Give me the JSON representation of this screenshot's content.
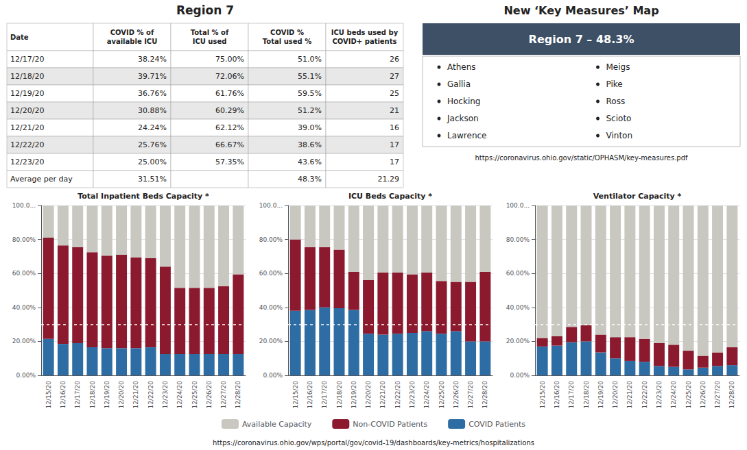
{
  "chart_data": [
    {
      "type": "table",
      "title": "Region 7",
      "xlabel": "Date",
      "categories": [
        "12/17/20",
        "12/18/20",
        "12/19/20",
        "12/20/20",
        "12/21/20",
        "12/22/20",
        "12/23/20",
        "Average per day"
      ],
      "series": [
        {
          "name": "COVID % of\navailable ICU",
          "values": [
            38.24,
            39.71,
            36.76,
            30.88,
            24.24,
            25.76,
            25.0,
            31.51
          ],
          "value_labels": [
            "38.24%",
            "39.71%",
            "36.76%",
            "30.88%",
            "24.24%",
            "25.76%",
            "25.00%",
            "31.51%"
          ]
        },
        {
          "name": "Total % of\nICU used",
          "values": [
            75.0,
            72.06,
            61.76,
            60.29,
            62.12,
            66.67,
            57.35,
            null
          ],
          "value_labels": [
            "75.00%",
            "72.06%",
            "61.76%",
            "60.29%",
            "62.12%",
            "66.67%",
            "57.35%",
            null
          ]
        },
        {
          "name": "COVID %\nTotal used %",
          "values": [
            51.0,
            55.1,
            59.5,
            51.2,
            39.0,
            38.6,
            43.6,
            48.3
          ],
          "value_labels": [
            "51.0%",
            "55.1%",
            "59.5%",
            "51.2%",
            "39.0%",
            "38.6%",
            "43.6%",
            "48.3%"
          ]
        },
        {
          "name": "ICU beds used by\nCOVID+ patients",
          "values": [
            26,
            27,
            25,
            21,
            16,
            17,
            17,
            21.29
          ]
        }
      ]
    },
    {
      "type": "text_panel",
      "title": "New ‘Key Measures’ Map",
      "subtitle": "Region 7 – 48.3%",
      "color": "#3d5066",
      "items_left": [
        "Athens",
        "Gallia",
        "Hocking",
        "Jackson",
        "Lawrence"
      ],
      "items_right": [
        "Meigs",
        "Pike",
        "Ross",
        "Scioto",
        "Vinton"
      ],
      "annotations": [
        "https://coronavirus.ohio.gov/static/OPHASM/key-measures.pdf"
      ]
    },
    {
      "type": "bar",
      "title": "Total Inpatient Beds Capacity *",
      "stacked": true,
      "grid": true,
      "legend": "bottom",
      "categories": [
        "12/15/20",
        "12/16/20",
        "12/17/20",
        "12/18/20",
        "12/19/20",
        "12/20/20",
        "12/21/20",
        "12/22/20",
        "12/23/20",
        "12/24/20",
        "12/25/20",
        "12/26/20",
        "12/27/20",
        "12/28/20"
      ],
      "series": [
        {
          "name": "COVID Patients",
          "color": "#2e6da4",
          "values": [
            21.5,
            18.5,
            19.0,
            16.5,
            16.0,
            16.0,
            16.0,
            16.5,
            12.5,
            12.5,
            12.5,
            12.5,
            12.5,
            12.5
          ]
        },
        {
          "name": "Non-COVID Patients",
          "color": "#8b1a2e",
          "values": [
            59.5,
            58.0,
            56.5,
            56.0,
            54.5,
            55.0,
            53.5,
            52.5,
            51.5,
            39.0,
            39.0,
            39.0,
            40.0,
            47.0
          ]
        },
        {
          "name": "Available Capacity",
          "color": "#c8c8c0",
          "values": [
            19.0,
            23.5,
            24.5,
            27.5,
            29.5,
            29.0,
            30.5,
            31.0,
            36.0,
            48.5,
            48.5,
            48.5,
            47.5,
            40.5
          ]
        }
      ],
      "reference_line": 30.0,
      "ylim": [
        0,
        100
      ],
      "yticks": [
        {
          "value": 0,
          "label": "0.00%"
        },
        {
          "value": 20,
          "label": "20.00%"
        },
        {
          "value": 40,
          "label": "40.00%"
        },
        {
          "value": 60,
          "label": "60.00%"
        },
        {
          "value": 80,
          "label": "80.00%"
        },
        {
          "value": 100,
          "label": "100.0..."
        }
      ]
    },
    {
      "type": "bar",
      "title": "ICU Beds Capacity *",
      "stacked": true,
      "grid": true,
      "legend": "bottom",
      "categories": [
        "12/15/20",
        "12/16/20",
        "12/17/20",
        "12/18/20",
        "12/19/20",
        "12/20/20",
        "12/21/20",
        "12/22/20",
        "12/23/20",
        "12/24/20",
        "12/25/20",
        "12/26/20",
        "12/27/20",
        "12/28/20"
      ],
      "series": [
        {
          "name": "COVID Patients",
          "color": "#2e6da4",
          "values": [
            38.0,
            38.5,
            40.0,
            39.5,
            38.5,
            24.5,
            24.0,
            24.5,
            25.0,
            26.0,
            24.5,
            26.0,
            20.0,
            20.0
          ]
        },
        {
          "name": "Non-COVID Patients",
          "color": "#8b1a2e",
          "values": [
            42.0,
            37.0,
            35.5,
            34.5,
            22.5,
            31.5,
            36.5,
            36.0,
            34.5,
            34.5,
            31.0,
            29.0,
            35.0,
            41.0
          ]
        },
        {
          "name": "Available Capacity",
          "color": "#c8c8c0",
          "values": [
            20.0,
            24.5,
            24.5,
            26.0,
            39.0,
            44.0,
            39.5,
            39.5,
            40.5,
            39.5,
            44.5,
            45.0,
            45.0,
            39.0
          ]
        }
      ],
      "reference_line": 30.0,
      "ylim": [
        0,
        100
      ],
      "yticks": [
        {
          "value": 0,
          "label": "0.00%"
        },
        {
          "value": 20,
          "label": "20.00%"
        },
        {
          "value": 40,
          "label": "40.00%"
        },
        {
          "value": 60,
          "label": "60.00%"
        },
        {
          "value": 80,
          "label": "80.00%"
        },
        {
          "value": 100,
          "label": "100.0..."
        }
      ]
    },
    {
      "type": "bar",
      "title": "Ventilator Capacity *",
      "stacked": true,
      "grid": true,
      "legend": "bottom",
      "categories": [
        "12/15/20",
        "12/16/20",
        "12/17/20",
        "12/18/20",
        "12/19/20",
        "12/20/20",
        "12/21/20",
        "12/22/20",
        "12/23/20",
        "12/24/20",
        "12/25/20",
        "12/26/20",
        "12/27/20",
        "12/28/20"
      ],
      "series": [
        {
          "name": "COVID Patients",
          "color": "#2e6da4",
          "values": [
            17.0,
            17.5,
            19.5,
            20.0,
            13.5,
            10.0,
            8.5,
            8.0,
            5.5,
            5.0,
            3.5,
            4.5,
            5.5,
            6.0
          ]
        },
        {
          "name": "Non-COVID Patients",
          "color": "#8b1a2e",
          "values": [
            5.0,
            5.5,
            9.0,
            9.5,
            10.5,
            12.5,
            14.0,
            13.5,
            13.5,
            13.0,
            11.0,
            7.0,
            8.0,
            10.5
          ]
        },
        {
          "name": "Available Capacity",
          "color": "#c8c8c0",
          "values": [
            78.0,
            77.0,
            71.5,
            70.5,
            76.0,
            77.5,
            77.5,
            78.5,
            81.0,
            82.0,
            85.5,
            88.5,
            86.5,
            83.5
          ]
        }
      ],
      "reference_line": 30.0,
      "ylim": [
        0,
        100
      ],
      "yticks": [
        {
          "value": 0,
          "label": "0.00%"
        },
        {
          "value": 20,
          "label": "20.00%"
        },
        {
          "value": 40,
          "label": "40.00%"
        },
        {
          "value": 60,
          "label": "60.00%"
        },
        {
          "value": 80,
          "label": "80.00%"
        },
        {
          "value": 100,
          "label": "100.0..."
        }
      ]
    }
  ],
  "source": "https://coronavirus.ohio.gov/wps/portal/gov/covid-19/dashboards/key-metrics/hospitalizations"
}
